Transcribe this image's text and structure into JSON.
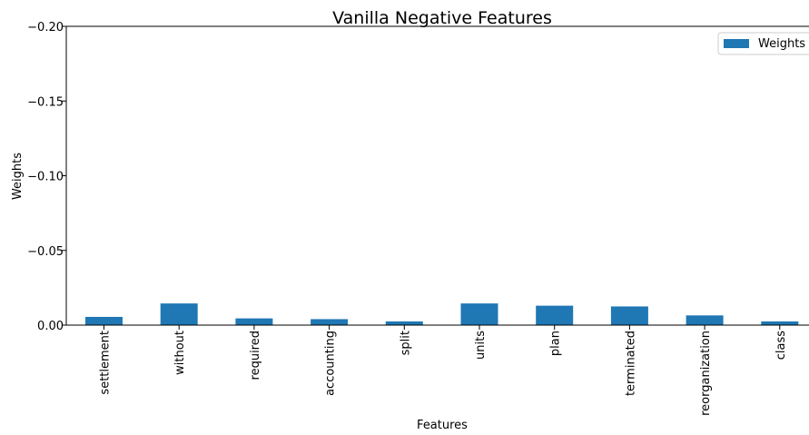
{
  "chart_data": {
    "type": "bar",
    "title": "Vanilla Negative Features",
    "xlabel": "Features",
    "ylabel": "Weights",
    "categories": [
      "settlement",
      "without",
      "required",
      "accounting",
      "split",
      "units",
      "plan",
      "terminated",
      "reorganization",
      "class"
    ],
    "series": [
      {
        "name": "Weights",
        "values": [
          -0.0055,
          -0.0145,
          -0.0045,
          -0.004,
          -0.0025,
          -0.0145,
          -0.013,
          -0.0125,
          -0.0065,
          -0.0025
        ]
      }
    ],
    "ylim": [
      0.0,
      -0.2
    ],
    "y_inverted": true,
    "yticks": [
      0.0,
      -0.05,
      -0.1,
      -0.15,
      -0.2
    ],
    "ytick_labels": [
      "0.00",
      "−0.05",
      "−0.10",
      "−0.15",
      "−0.20"
    ],
    "grid": false,
    "legend_position": "top-right",
    "bar_color": "#1f77b4"
  }
}
